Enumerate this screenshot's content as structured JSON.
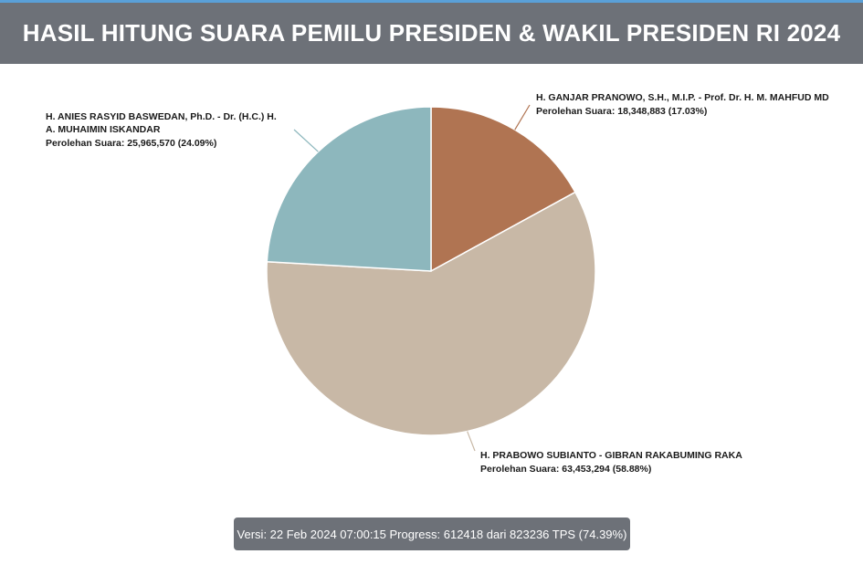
{
  "header": {
    "title": "HASIL HITUNG SUARA PEMILU PRESIDEN & WAKIL PRESIDEN RI 2024"
  },
  "chart_data": {
    "type": "pie",
    "slices": [
      {
        "name_lines": [
          "H. GANJAR PRANOWO, S.H., M.I.P. - Prof. Dr. H. M. MAHFUD MD"
        ],
        "votes_text": "Perolehan Suara: 18,348,883 (17.03%)",
        "votes": 18348883,
        "percent": 17.03,
        "color": "#b07452"
      },
      {
        "name_lines": [
          "H. PRABOWO SUBIANTO - GIBRAN RAKABUMING RAKA"
        ],
        "votes_text": "Perolehan Suara: 63,453,294 (58.88%)",
        "votes": 63453294,
        "percent": 58.88,
        "color": "#c8b8a6"
      },
      {
        "name_lines": [
          "H. ANIES RASYID BASWEDAN, Ph.D. - Dr. (H.C.) H.",
          "A. MUHAIMIN ISKANDAR"
        ],
        "votes_text": "Perolehan Suara: 25,965,570 (24.09%)",
        "votes": 25965570,
        "percent": 24.09,
        "color": "#8db7bd"
      }
    ]
  },
  "footer": {
    "text": "Versi: 22 Feb 2024 07:00:15 Progress: 612418 dari 823236 TPS (74.39%)"
  }
}
